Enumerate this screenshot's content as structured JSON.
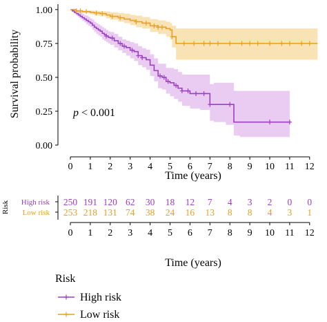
{
  "chart_data": {
    "type": "line",
    "subtype": "kaplan-meier",
    "ylabel": "Survival probability",
    "xlabel": "Time (years)",
    "xlim": [
      -0.3,
      12.5
    ],
    "ylim": [
      0,
      1.04
    ],
    "x_ticks": [
      "0",
      "1",
      "2",
      "3",
      "4",
      "5",
      "6",
      "7",
      "8",
      "9",
      "10",
      "11",
      "12"
    ],
    "y_ticks": [
      "0.00",
      "0.25",
      "0.50",
      "0.75",
      "1.00"
    ],
    "annotation": {
      "italic": "p",
      "rest": " < 0.001"
    },
    "colors": {
      "high": "#9B3FC0",
      "low": "#E8A020",
      "high_band": "#E8C6F2",
      "low_band": "#F8DDA6"
    },
    "series": [
      {
        "name": "High risk",
        "key": "high",
        "x": [
          0,
          0.1,
          0.2,
          0.3,
          0.4,
          0.5,
          0.6,
          0.7,
          0.8,
          0.9,
          1,
          1.1,
          1.2,
          1.3,
          1.4,
          1.5,
          1.6,
          1.7,
          1.8,
          1.9,
          2,
          2.2,
          2.4,
          2.6,
          2.8,
          3,
          3.2,
          3.4,
          3.6,
          3.8,
          4,
          4.2,
          4.4,
          4.6,
          4.8,
          5,
          5.2,
          5.4,
          5.6,
          6,
          6.5,
          7,
          7.2,
          7.8,
          8.2,
          8.5,
          9,
          9.5,
          10,
          10.5,
          11
        ],
        "y": [
          1.0,
          0.99,
          0.98,
          0.97,
          0.96,
          0.95,
          0.94,
          0.93,
          0.92,
          0.91,
          0.9,
          0.885,
          0.87,
          0.86,
          0.85,
          0.84,
          0.825,
          0.815,
          0.805,
          0.795,
          0.79,
          0.77,
          0.75,
          0.73,
          0.72,
          0.7,
          0.69,
          0.66,
          0.645,
          0.63,
          0.59,
          0.55,
          0.51,
          0.5,
          0.47,
          0.46,
          0.44,
          0.42,
          0.4,
          0.38,
          0.38,
          0.3,
          0.3,
          0.3,
          0.17,
          0.17,
          0.17,
          0.17,
          0.17,
          0.17,
          0.17
        ],
        "lower": [
          1.0,
          0.985,
          0.97,
          0.955,
          0.94,
          0.93,
          0.915,
          0.905,
          0.89,
          0.88,
          0.87,
          0.85,
          0.835,
          0.82,
          0.81,
          0.8,
          0.78,
          0.77,
          0.76,
          0.75,
          0.74,
          0.72,
          0.7,
          0.68,
          0.66,
          0.64,
          0.62,
          0.59,
          0.575,
          0.555,
          0.51,
          0.47,
          0.42,
          0.41,
          0.38,
          0.36,
          0.34,
          0.32,
          0.29,
          0.27,
          0.26,
          0.18,
          0.17,
          0.15,
          0.07,
          0.06,
          0.06,
          0.06,
          0.06,
          0.06,
          0.06
        ],
        "upper": [
          1.0,
          0.997,
          0.993,
          0.99,
          0.985,
          0.98,
          0.97,
          0.96,
          0.955,
          0.945,
          0.935,
          0.925,
          0.91,
          0.9,
          0.89,
          0.88,
          0.87,
          0.86,
          0.85,
          0.84,
          0.835,
          0.82,
          0.8,
          0.78,
          0.77,
          0.76,
          0.75,
          0.73,
          0.715,
          0.705,
          0.67,
          0.64,
          0.6,
          0.6,
          0.57,
          0.57,
          0.56,
          0.54,
          0.52,
          0.52,
          0.52,
          0.45,
          0.46,
          0.46,
          0.4,
          0.4,
          0.4,
          0.4,
          0.4,
          0.4,
          0.4
        ],
        "censor_x": [
          1.8,
          2.1,
          2.5,
          2.7,
          3.1,
          3.4,
          3.6,
          4.5,
          4.7,
          4.9,
          5.3,
          5.6,
          5.9,
          6.3,
          6.7,
          7.0,
          8.0,
          10.0,
          11.0
        ]
      },
      {
        "name": "Low risk",
        "key": "low",
        "x": [
          0,
          0.3,
          0.6,
          1,
          1.2,
          1.5,
          1.8,
          2,
          2.4,
          2.7,
          3,
          3.3,
          3.6,
          4,
          4.4,
          4.8,
          5,
          5.1,
          5.3,
          6,
          7,
          8,
          9,
          10,
          11,
          12,
          12.4
        ],
        "y": [
          1.0,
          0.99,
          0.985,
          0.98,
          0.975,
          0.97,
          0.96,
          0.95,
          0.94,
          0.93,
          0.92,
          0.91,
          0.9,
          0.88,
          0.87,
          0.86,
          0.85,
          0.8,
          0.75,
          0.75,
          0.75,
          0.75,
          0.75,
          0.75,
          0.75,
          0.75,
          0.75
        ],
        "lower": [
          1.0,
          0.98,
          0.975,
          0.965,
          0.955,
          0.95,
          0.935,
          0.925,
          0.91,
          0.9,
          0.885,
          0.87,
          0.86,
          0.835,
          0.82,
          0.8,
          0.78,
          0.72,
          0.63,
          0.63,
          0.63,
          0.63,
          0.63,
          0.63,
          0.63,
          0.63,
          0.63
        ],
        "upper": [
          1.0,
          0.997,
          0.995,
          0.993,
          0.99,
          0.988,
          0.985,
          0.98,
          0.975,
          0.97,
          0.96,
          0.955,
          0.945,
          0.93,
          0.92,
          0.91,
          0.9,
          0.88,
          0.86,
          0.86,
          0.86,
          0.86,
          0.86,
          0.86,
          0.86,
          0.86,
          0.86
        ],
        "censor_x": [
          0.3,
          0.5,
          0.8,
          1.3,
          1.6,
          2.1,
          2.5,
          3.3,
          3.8,
          4.2,
          4.4,
          4.6,
          5.1,
          5.7,
          6.2,
          6.7,
          7.0,
          7.4,
          8.0,
          8.6,
          9.0,
          9.4,
          10.0,
          10.6,
          11.0,
          11.6,
          12.0
        ]
      }
    ]
  },
  "risk_table": {
    "ylabel": "Risk",
    "xlabel": "Time (years)",
    "rows": [
      {
        "label": "High risk",
        "key": "high",
        "values": [
          "250",
          "191",
          "120",
          "62",
          "30",
          "18",
          "12",
          "7",
          "4",
          "3",
          "2",
          "0",
          "0"
        ]
      },
      {
        "label": "Low risk",
        "key": "low",
        "values": [
          "253",
          "218",
          "131",
          "74",
          "38",
          "24",
          "16",
          "13",
          "8",
          "8",
          "4",
          "3",
          "1"
        ]
      }
    ]
  },
  "legend": {
    "title": "Risk",
    "items": [
      {
        "label": "High risk",
        "key": "high"
      },
      {
        "label": "Low risk",
        "key": "low"
      }
    ]
  }
}
